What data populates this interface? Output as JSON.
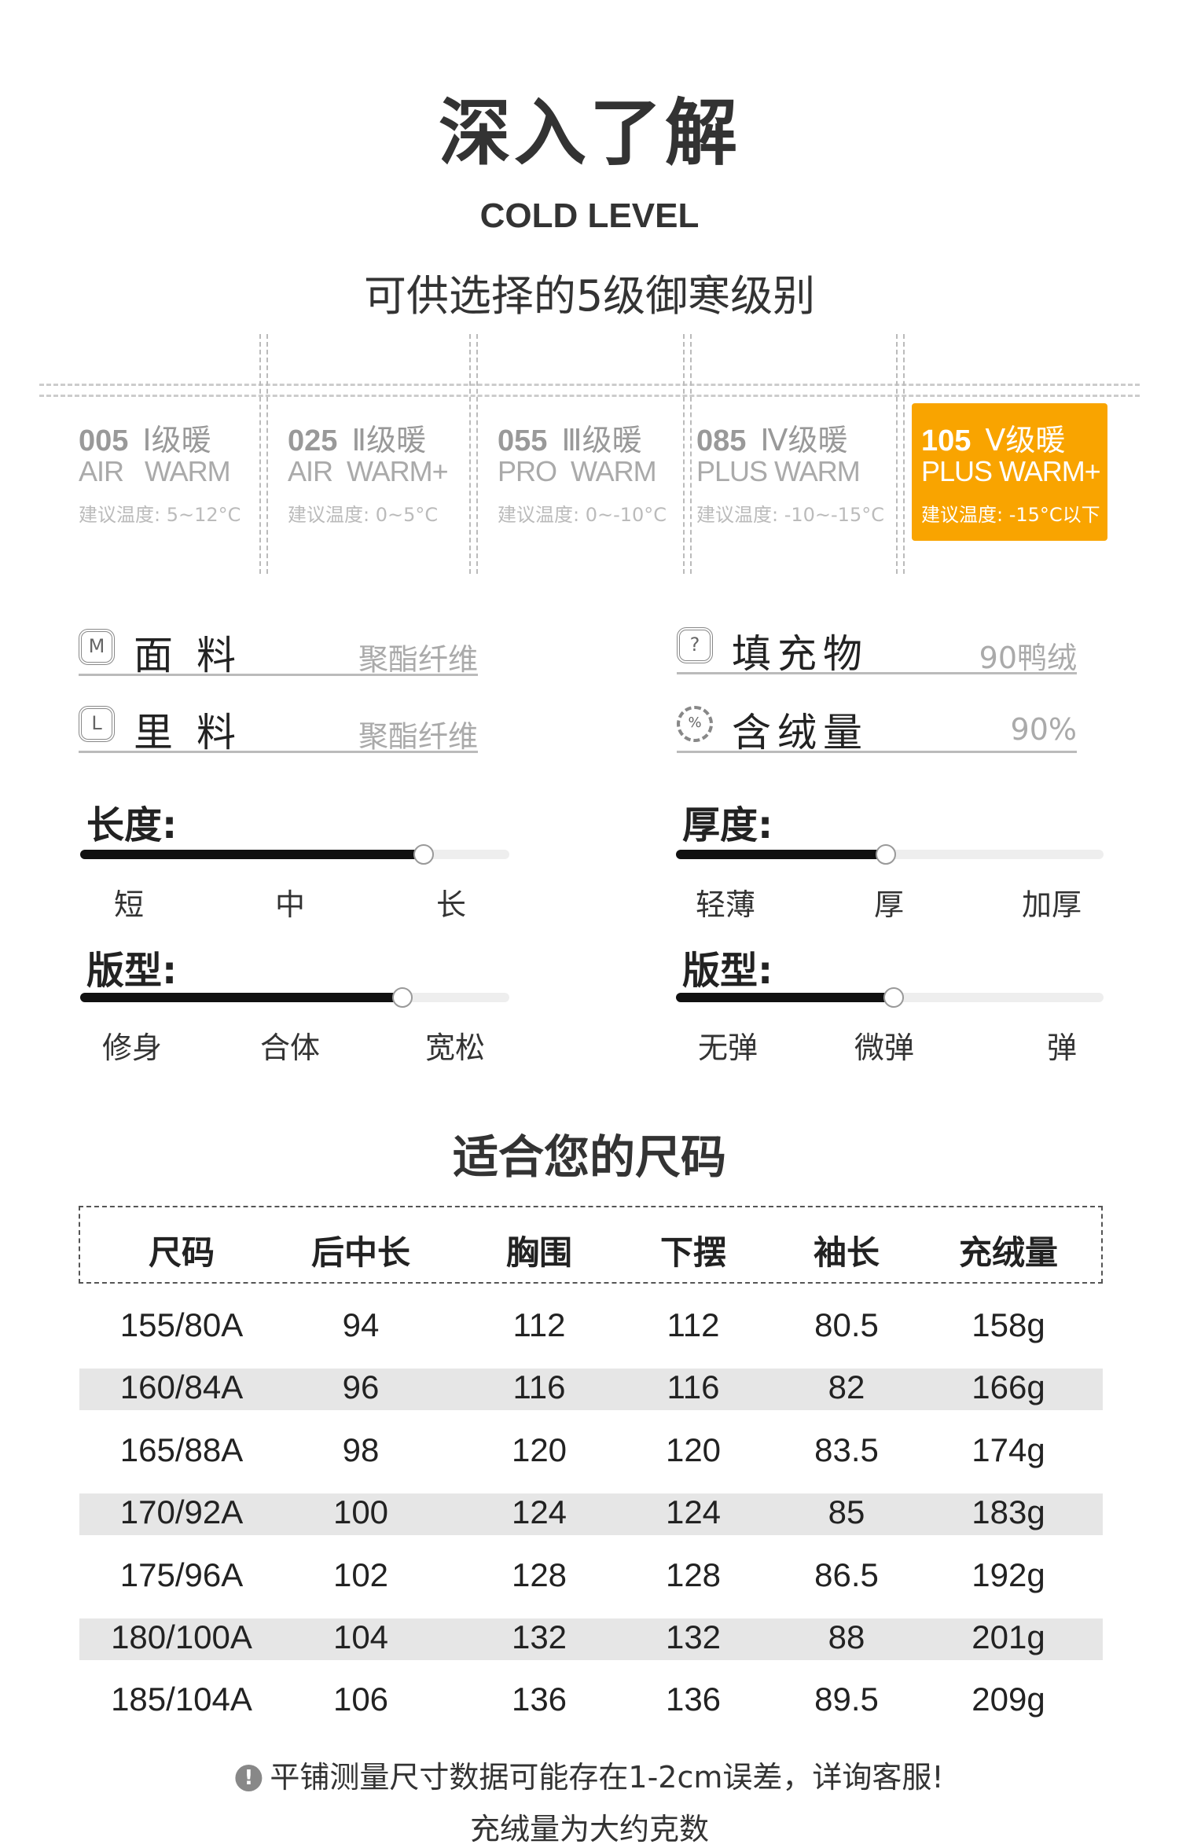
{
  "header": {
    "title": "深入了解",
    "subtitle_en": "COLD LEVEL",
    "subtitle": "可供选择的5级御寒级别"
  },
  "cold_levels": [
    {
      "code": "005",
      "level": "Ⅰ级暖",
      "name": "AIR   WARM",
      "temp": "建议温度: 5~12°C",
      "active": false
    },
    {
      "code": "025",
      "level": "Ⅱ级暖",
      "name": "AIR  WARM+",
      "temp": "建议温度: 0~5°C",
      "active": false
    },
    {
      "code": "055",
      "level": "Ⅲ级暖",
      "name": "PRO  WARM",
      "temp": "建议温度: 0~-10°C",
      "active": false
    },
    {
      "code": "085",
      "level": "Ⅳ级暖",
      "name": "PLUS WARM",
      "temp": "建议温度: -10~-15°C",
      "active": false
    },
    {
      "code": "105",
      "level": "Ⅴ级暖",
      "name": "PLUS WARM+",
      "temp": "建议温度: -15°C以下",
      "active": true
    }
  ],
  "accent_color": "#f9a400",
  "materials": [
    {
      "icon": "M",
      "label": "面料",
      "value": "聚酯纤维"
    },
    {
      "icon": "L",
      "label": "里料",
      "value": "聚酯纤维"
    },
    {
      "icon": "?",
      "label": "填充物",
      "value": "90鸭绒"
    },
    {
      "icon": "%",
      "label": "含绒量",
      "value": "90%"
    }
  ],
  "sliders": [
    {
      "label": "长度:",
      "ticks": [
        "短",
        "中",
        "长"
      ],
      "value_percent": 80
    },
    {
      "label": "厚度:",
      "ticks": [
        "轻薄",
        "厚",
        "加厚"
      ],
      "value_percent": 49
    },
    {
      "label": "版型:",
      "ticks": [
        "修身",
        "合体",
        "宽松"
      ],
      "value_percent": 75
    },
    {
      "label": "版型:",
      "ticks": [
        "无弹",
        "微弹",
        "弹"
      ],
      "value_percent": 51
    }
  ],
  "size_table": {
    "title": "适合您的尺码",
    "headers": [
      "尺码",
      "后中长",
      "胸围",
      "下摆",
      "袖长",
      "充绒量"
    ],
    "rows": [
      [
        "155/80A",
        "94",
        "112",
        "112",
        "80.5",
        "158g"
      ],
      [
        "160/84A",
        "96",
        "116",
        "116",
        "82",
        "166g"
      ],
      [
        "165/88A",
        "98",
        "120",
        "120",
        "83.5",
        "174g"
      ],
      [
        "170/92A",
        "100",
        "124",
        "124",
        "85",
        "183g"
      ],
      [
        "175/96A",
        "102",
        "128",
        "128",
        "86.5",
        "192g"
      ],
      [
        "180/100A",
        "104",
        "132",
        "132",
        "88",
        "201g"
      ],
      [
        "185/104A",
        "106",
        "136",
        "136",
        "89.5",
        "209g"
      ]
    ]
  },
  "notes": {
    "icon": "!",
    "text": "平铺测量尺寸数据可能存在1-2cm误差，详询客服!",
    "text2": "充绒量为大约克数"
  }
}
